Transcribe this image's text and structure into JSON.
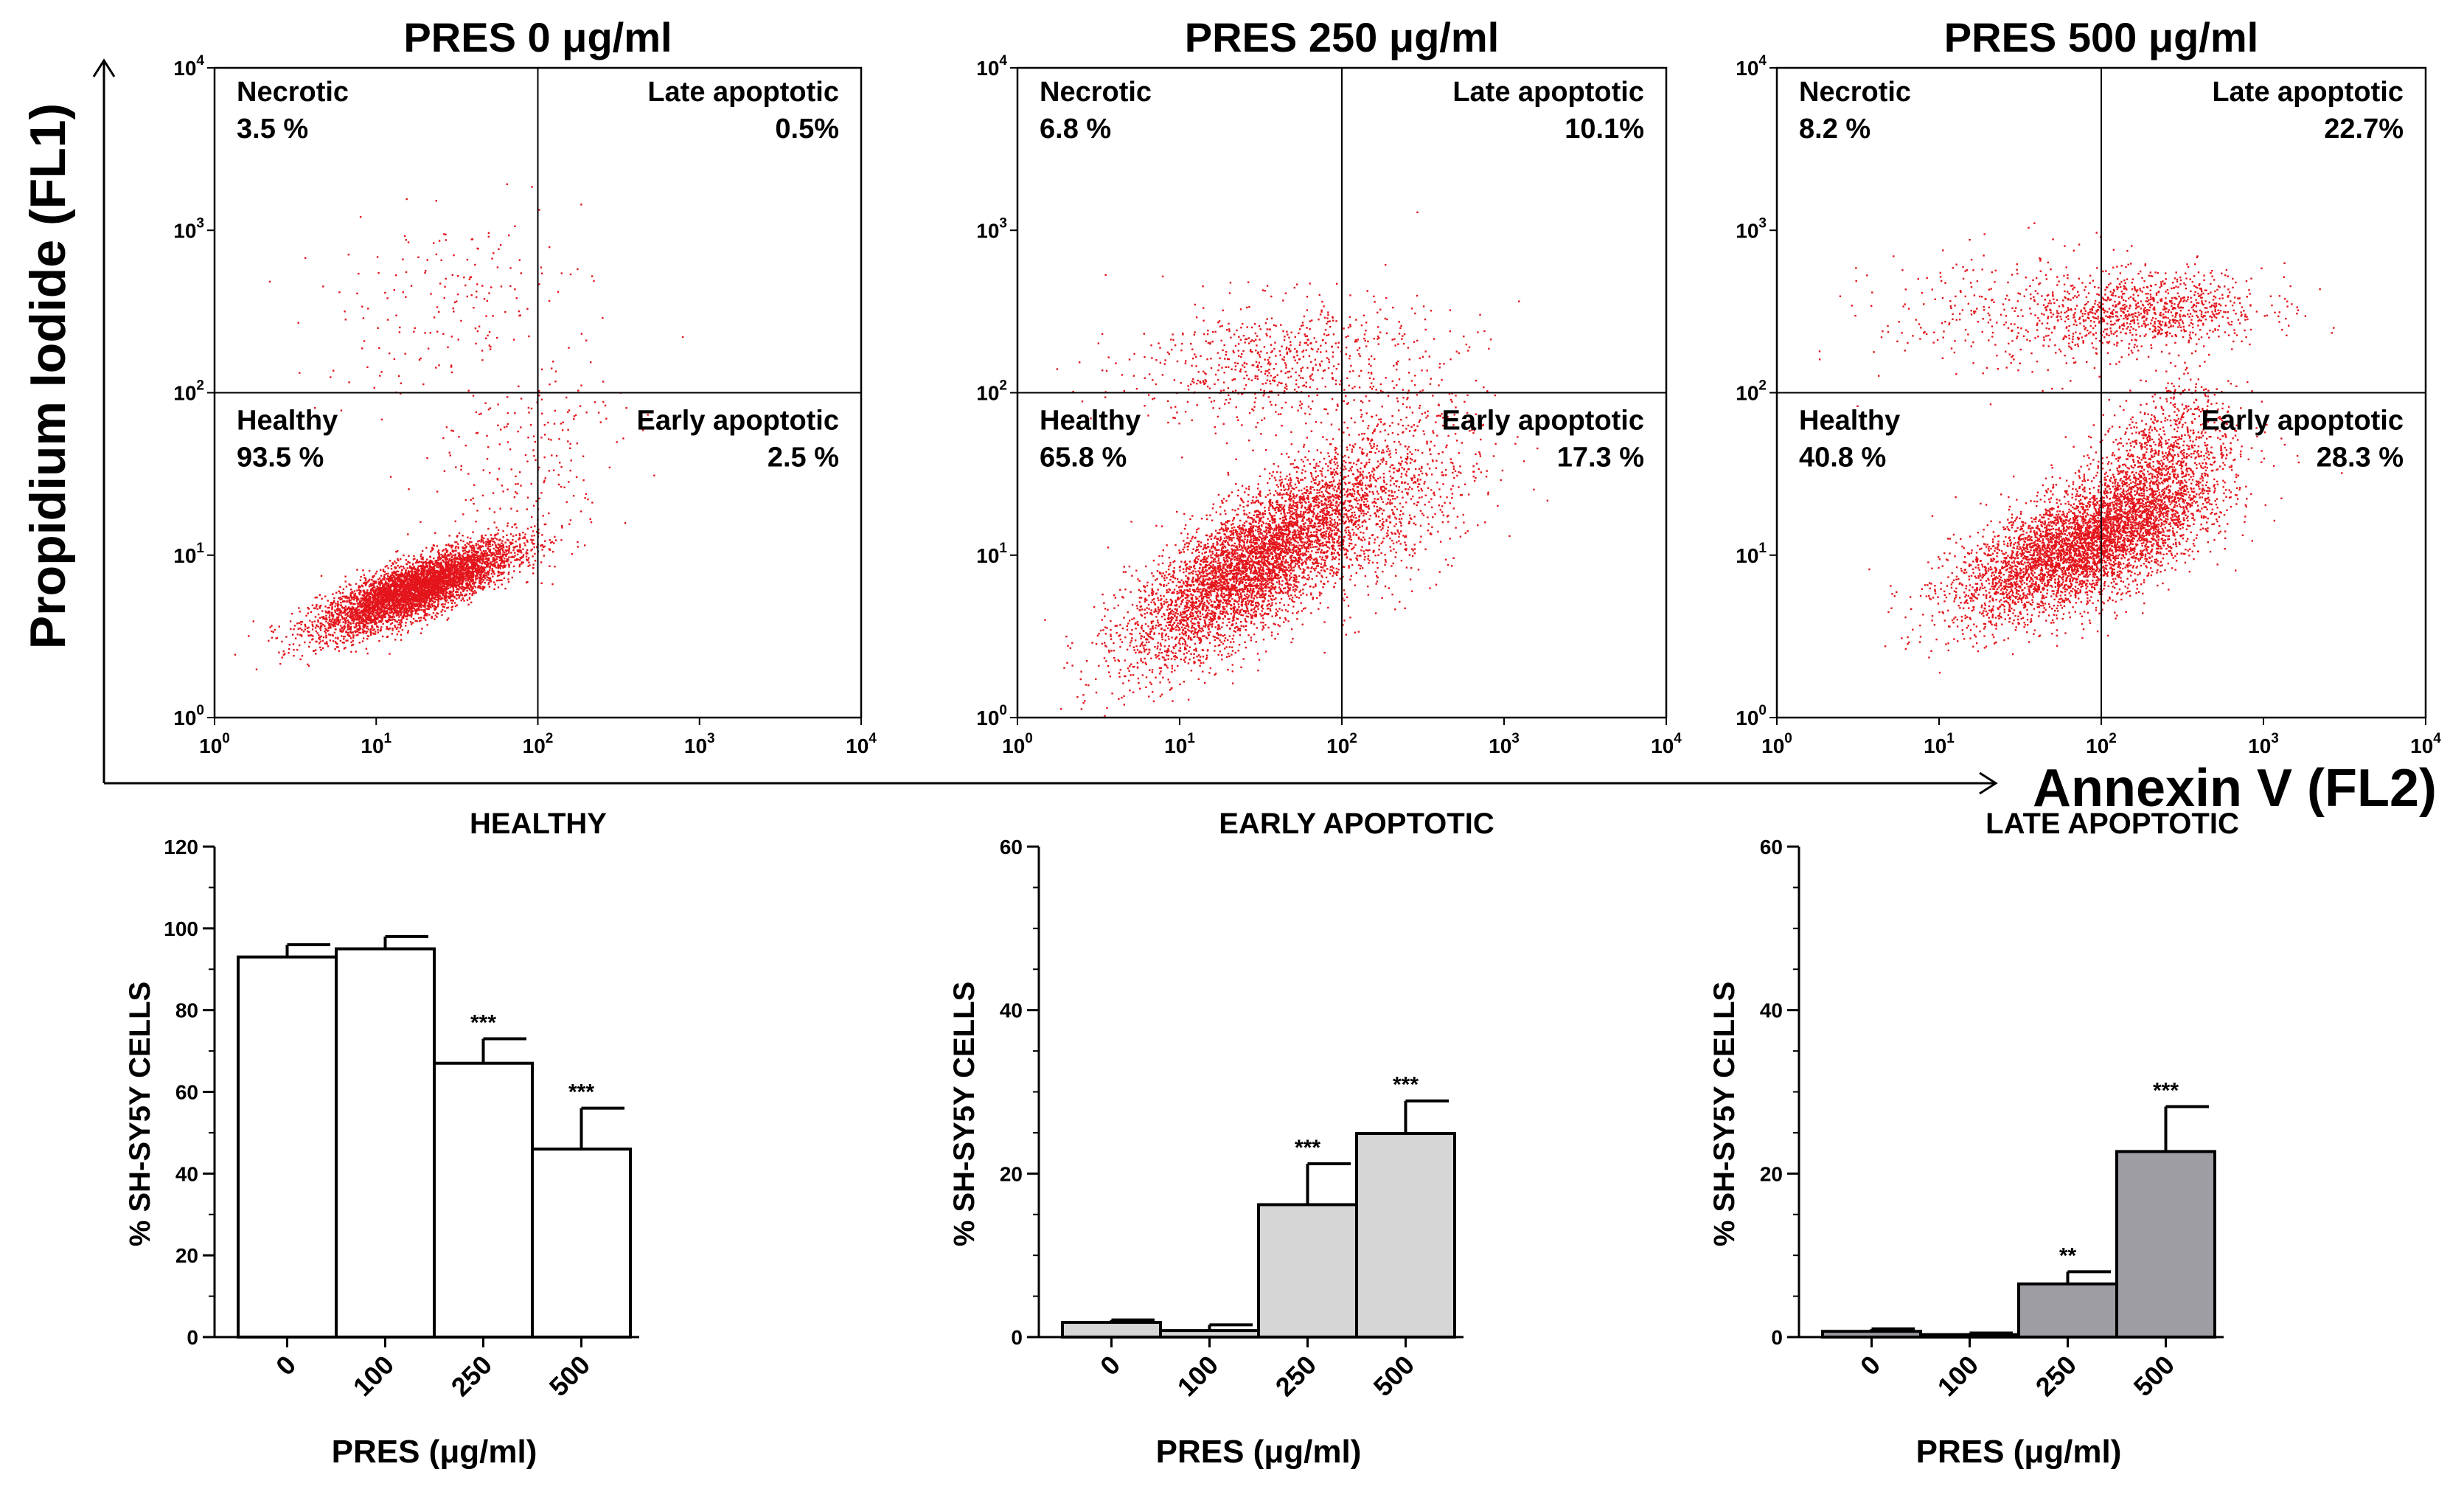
{
  "figure": {
    "y_axis_label": "Propidium Iodide   (FL1)",
    "x_axis_label": "Annexin V (FL2)"
  },
  "colors": {
    "dots": "#e3141b",
    "healthy_bar": "#ffffff",
    "early_bar": "#d6d6d6",
    "late_bar": "#9d9da3"
  },
  "chart_data": [
    {
      "type": "scatter",
      "title": "PRES 0 μg/ml",
      "xscale": "log",
      "yscale": "log",
      "xlim": [
        1,
        10000
      ],
      "ylim": [
        1,
        10000
      ],
      "x_ticks": [
        {
          "base": "10",
          "exp": "0"
        },
        {
          "base": "10",
          "exp": "1"
        },
        {
          "base": "10",
          "exp": "2"
        },
        {
          "base": "10",
          "exp": "3"
        },
        {
          "base": "10",
          "exp": "4"
        }
      ],
      "y_ticks": [
        {
          "base": "10",
          "exp": "0"
        },
        {
          "base": "10",
          "exp": "1"
        },
        {
          "base": "10",
          "exp": "2"
        },
        {
          "base": "10",
          "exp": "3"
        },
        {
          "base": "10",
          "exp": "4"
        }
      ],
      "gate": {
        "x": 100,
        "y": 100
      },
      "quadrants": {
        "necrotic": {
          "label": "Necrotic",
          "value": "3.5 %"
        },
        "late": {
          "label": "Late apoptotic",
          "value": "0.5%"
        },
        "healthy": {
          "label": "Healthy",
          "value": "93.5 %"
        },
        "early": {
          "label": "Early apoptotic",
          "value": "2.5 %"
        }
      },
      "populations": [
        {
          "n": 5200,
          "cx": 1.25,
          "cy": 0.8,
          "sx": 0.3,
          "sy": 0.14,
          "rho": 0.8
        },
        {
          "n": 180,
          "cx": 1.4,
          "cy": 2.55,
          "sx": 0.45,
          "sy": 0.28,
          "rho": 0.3
        },
        {
          "n": 220,
          "cx": 1.9,
          "cy": 1.6,
          "sx": 0.3,
          "sy": 0.35,
          "rho": 0.3
        }
      ]
    },
    {
      "type": "scatter",
      "title": "PRES 250 μg/ml",
      "xscale": "log",
      "yscale": "log",
      "xlim": [
        1,
        10000
      ],
      "ylim": [
        1,
        10000
      ],
      "x_ticks": [
        {
          "base": "10",
          "exp": "0"
        },
        {
          "base": "10",
          "exp": "1"
        },
        {
          "base": "10",
          "exp": "2"
        },
        {
          "base": "10",
          "exp": "3"
        },
        {
          "base": "10",
          "exp": "4"
        }
      ],
      "y_ticks": [
        {
          "base": "10",
          "exp": "0"
        },
        {
          "base": "10",
          "exp": "1"
        },
        {
          "base": "10",
          "exp": "2"
        },
        {
          "base": "10",
          "exp": "3"
        },
        {
          "base": "10",
          "exp": "4"
        }
      ],
      "gate": {
        "x": 100,
        "y": 100
      },
      "quadrants": {
        "necrotic": {
          "label": "Necrotic",
          "value": "6.8 %"
        },
        "late": {
          "label": "Late apoptotic",
          "value": "10.1%"
        },
        "healthy": {
          "label": "Healthy",
          "value": "65.8 %"
        },
        "early": {
          "label": "Early apoptotic",
          "value": "17.3 %"
        }
      },
      "populations": [
        {
          "n": 5000,
          "cx": 1.45,
          "cy": 0.95,
          "sx": 0.38,
          "sy": 0.3,
          "rho": 0.75
        },
        {
          "n": 700,
          "cx": 1.6,
          "cy": 2.2,
          "sx": 0.45,
          "sy": 0.2,
          "rho": 0.2
        },
        {
          "n": 900,
          "cx": 2.2,
          "cy": 1.35,
          "sx": 0.35,
          "sy": 0.35,
          "rho": 0.4
        }
      ]
    },
    {
      "type": "scatter",
      "title": "PRES 500 μg/ml",
      "xscale": "log",
      "yscale": "log",
      "xlim": [
        1,
        10000
      ],
      "ylim": [
        1,
        10000
      ],
      "x_ticks": [
        {
          "base": "10",
          "exp": "0"
        },
        {
          "base": "10",
          "exp": "1"
        },
        {
          "base": "10",
          "exp": "2"
        },
        {
          "base": "10",
          "exp": "3"
        },
        {
          "base": "10",
          "exp": "4"
        }
      ],
      "y_ticks": [
        {
          "base": "10",
          "exp": "0"
        },
        {
          "base": "10",
          "exp": "1"
        },
        {
          "base": "10",
          "exp": "2"
        },
        {
          "base": "10",
          "exp": "3"
        },
        {
          "base": "10",
          "exp": "4"
        }
      ],
      "gate": {
        "x": 100,
        "y": 100
      },
      "quadrants": {
        "necrotic": {
          "label": "Necrotic",
          "value": "8.2 %"
        },
        "late": {
          "label": "Late apoptotic",
          "value": "22.7%"
        },
        "healthy": {
          "label": "Healthy",
          "value": "40.8 %"
        },
        "early": {
          "label": "Early apoptotic",
          "value": "28.3 %"
        }
      },
      "populations": [
        {
          "n": 4200,
          "cx": 1.85,
          "cy": 1.05,
          "sx": 0.38,
          "sy": 0.22,
          "rho": 0.65
        },
        {
          "n": 1600,
          "cx": 2.3,
          "cy": 1.45,
          "sx": 0.25,
          "sy": 0.3,
          "rho": 0.5
        },
        {
          "n": 900,
          "cx": 2.3,
          "cy": 2.5,
          "sx": 0.35,
          "sy": 0.12,
          "rho": 0.2
        },
        {
          "n": 350,
          "cx": 1.5,
          "cy": 2.5,
          "sx": 0.45,
          "sy": 0.2,
          "rho": 0.1
        }
      ]
    },
    {
      "type": "bar",
      "title": "HEALTHY",
      "xlabel": "PRES (μg/ml)",
      "ylabel": "% SH-SY5Y CELLS",
      "categories": [
        "0",
        "100",
        "250",
        "500"
      ],
      "values": [
        93,
        95,
        67,
        46
      ],
      "errors": [
        3,
        3,
        6,
        10
      ],
      "significance": [
        "",
        "",
        "***",
        "***"
      ],
      "ylim": [
        0,
        120
      ],
      "yticks": [
        0,
        20,
        40,
        60,
        80,
        100,
        120
      ],
      "minor_step": 10,
      "bar_color": "#ffffff"
    },
    {
      "type": "bar",
      "title": "EARLY APOPTOTIC",
      "xlabel": "PRES (μg/ml)",
      "ylabel": "% SH-SY5Y CELLS",
      "categories": [
        "0",
        "100",
        "250",
        "500"
      ],
      "values": [
        1.8,
        0.8,
        16.2,
        24.9
      ],
      "errors": [
        0.3,
        0.7,
        5,
        4
      ],
      "significance": [
        "",
        "",
        "***",
        "***"
      ],
      "ylim": [
        0,
        60
      ],
      "yticks": [
        0,
        20,
        40,
        60
      ],
      "minor_step": 5,
      "bar_color": "#d6d6d6"
    },
    {
      "type": "bar",
      "title": "LATE APOPTOTIC",
      "xlabel": "PRES (μg/ml)",
      "ylabel": "% SH-SY5Y CELLS",
      "categories": [
        "0",
        "100",
        "250",
        "500"
      ],
      "values": [
        0.7,
        0.3,
        6.5,
        22.7
      ],
      "errors": [
        0.3,
        0.2,
        1.5,
        5.5
      ],
      "significance": [
        "",
        "",
        "**",
        "***"
      ],
      "ylim": [
        0,
        60
      ],
      "yticks": [
        0,
        20,
        40,
        60
      ],
      "minor_step": 5,
      "bar_color": "#9d9da3"
    }
  ]
}
